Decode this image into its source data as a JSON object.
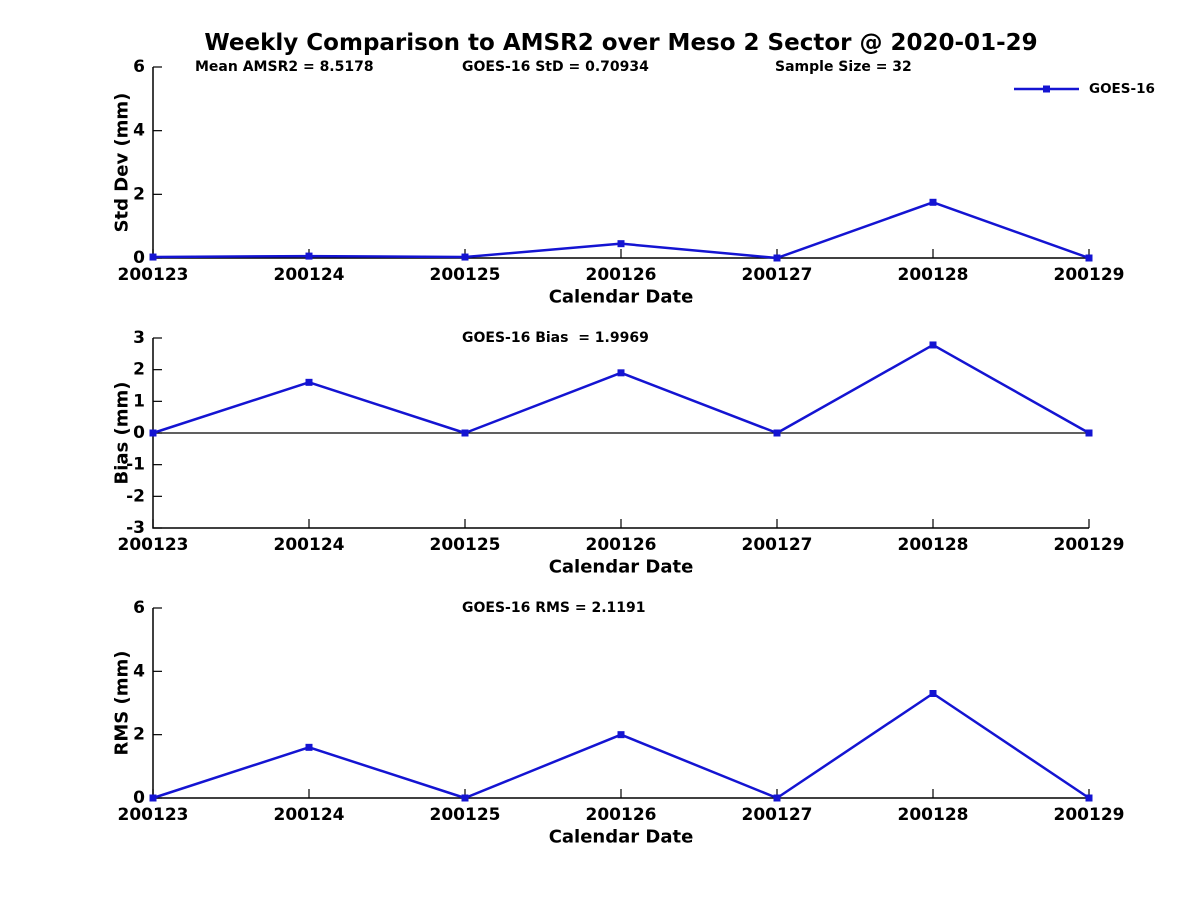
{
  "page": {
    "title": "Weekly Comparison to AMSR2 over Meso 2 Sector @ 2020-01-29",
    "background": "#ffffff",
    "text_color": "#000000"
  },
  "legend": {
    "label": "GOES-16",
    "series_color": "#1414d2",
    "position": "top-right-outside"
  },
  "chart_data": [
    {
      "id": "std_dev",
      "type": "line",
      "annotations": [
        "Mean AMSR2 = 8.5178",
        "GOES-16 StD = 0.70934",
        "Sample Size = 32"
      ],
      "categories": [
        "200123",
        "200124",
        "200125",
        "200126",
        "200127",
        "200128",
        "200129"
      ],
      "series": [
        {
          "name": "GOES-16",
          "values": [
            0.03,
            0.06,
            0.03,
            0.45,
            0.0,
            1.75,
            0.0
          ]
        }
      ],
      "xlabel": "Calendar Date",
      "ylabel": "Std Dev (mm)",
      "ylim": [
        0,
        6
      ],
      "yticks": [
        0,
        2,
        4,
        6
      ],
      "grid": false,
      "marker": "square"
    },
    {
      "id": "bias",
      "type": "line",
      "annotations": [
        "GOES-16 Bias  = 1.9969"
      ],
      "categories": [
        "200123",
        "200124",
        "200125",
        "200126",
        "200127",
        "200128",
        "200129"
      ],
      "series": [
        {
          "name": "GOES-16",
          "values": [
            0.0,
            1.6,
            0.0,
            1.9,
            0.0,
            2.78,
            0.0
          ]
        }
      ],
      "xlabel": "Calendar Date",
      "ylabel": "Bias (mm)",
      "ylim": [
        -3,
        3
      ],
      "yticks": [
        -3,
        -2,
        -1,
        0,
        1,
        2,
        3
      ],
      "zero_line": true,
      "grid": false,
      "marker": "square"
    },
    {
      "id": "rms",
      "type": "line",
      "annotations": [
        "GOES-16 RMS = 2.1191"
      ],
      "categories": [
        "200123",
        "200124",
        "200125",
        "200126",
        "200127",
        "200128",
        "200129"
      ],
      "series": [
        {
          "name": "GOES-16",
          "values": [
            0.0,
            1.6,
            0.0,
            2.0,
            0.0,
            3.3,
            0.0
          ]
        }
      ],
      "xlabel": "Calendar Date",
      "ylabel": "RMS (mm)",
      "ylim": [
        0,
        6
      ],
      "yticks": [
        0,
        2,
        4,
        6
      ],
      "grid": false,
      "marker": "square"
    }
  ]
}
